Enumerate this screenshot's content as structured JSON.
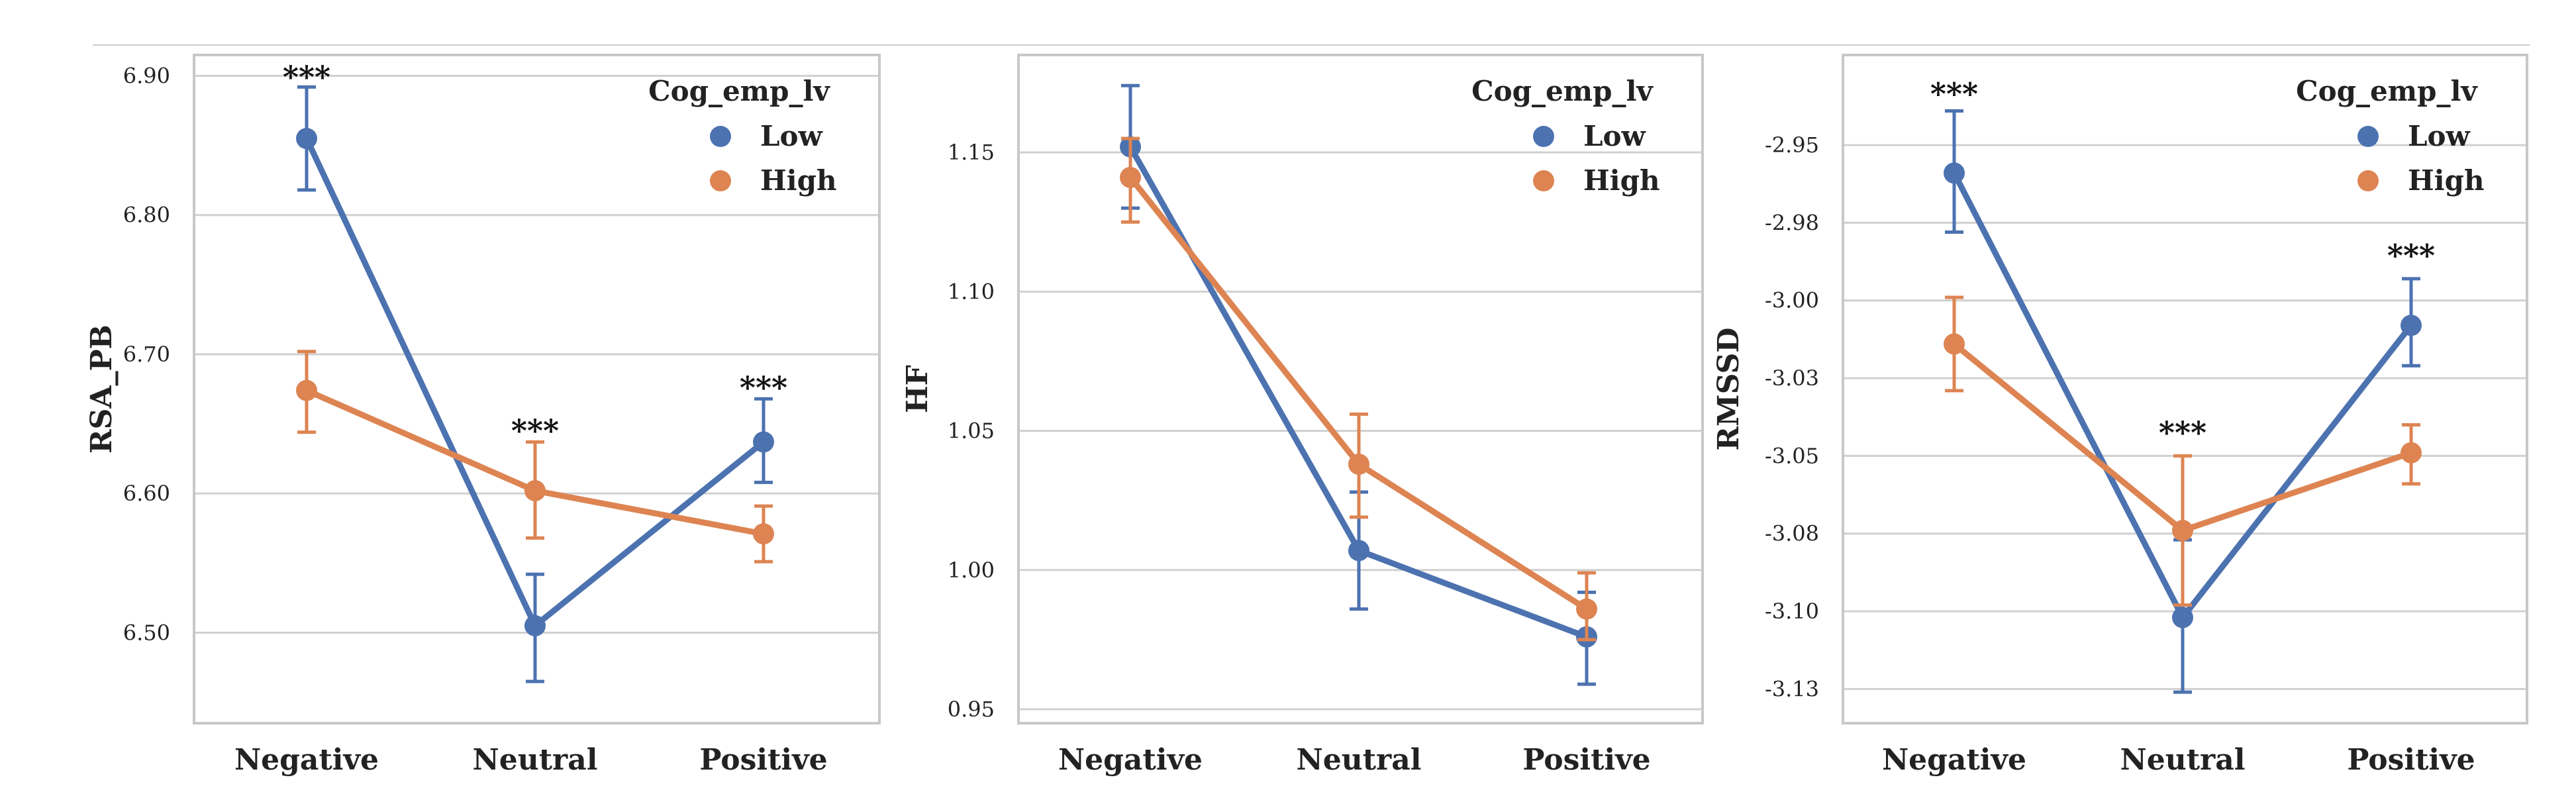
{
  "colors": {
    "low": "#4C72B0",
    "high": "#DD8452",
    "grid": "#d0d0d0",
    "frame": "#c8c8c8",
    "text": "#222222",
    "divider": "#cccccc"
  },
  "chart_data": [
    {
      "type": "line",
      "title": "",
      "xlabel": "",
      "ylabel": "RSA_PB",
      "categories": [
        "Negative",
        "Neutral",
        "Positive"
      ],
      "ylim": [
        6.435,
        6.915
      ],
      "yticks": [
        6.5,
        6.6,
        6.7,
        6.8,
        6.9
      ],
      "ytick_labels": [
        "6.50",
        "6.60",
        "6.70",
        "6.80",
        "6.90"
      ],
      "legend": {
        "title": "Cog_emp_lv",
        "position": "top-right",
        "entries": [
          "Low",
          "High"
        ]
      },
      "series": [
        {
          "name": "Low",
          "values": [
            6.855,
            6.505,
            6.637
          ],
          "ci_low": [
            6.818,
            6.465,
            6.608
          ],
          "ci_high": [
            6.892,
            6.542,
            6.668
          ]
        },
        {
          "name": "High",
          "values": [
            6.674,
            6.602,
            6.571
          ],
          "ci_low": [
            6.644,
            6.568,
            6.551
          ],
          "ci_high": [
            6.702,
            6.637,
            6.591
          ]
        }
      ],
      "annotations": [
        {
          "category": "Negative",
          "text": "***",
          "y": 6.898
        },
        {
          "category": "Neutral",
          "text": "***",
          "y": 6.644
        },
        {
          "category": "Positive",
          "text": "***",
          "y": 6.675
        }
      ]
    },
    {
      "type": "line",
      "title": "",
      "xlabel": "",
      "ylabel": "HF",
      "categories": [
        "Negative",
        "Neutral",
        "Positive"
      ],
      "ylim": [
        0.945,
        1.185
      ],
      "yticks": [
        0.95,
        1.0,
        1.05,
        1.1,
        1.15
      ],
      "ytick_labels": [
        "0.95",
        "1.00",
        "1.05",
        "1.10",
        "1.15"
      ],
      "legend": {
        "title": "Cog_emp_lv",
        "position": "top-right",
        "entries": [
          "Low",
          "High"
        ]
      },
      "series": [
        {
          "name": "Low",
          "values": [
            1.152,
            1.007,
            0.976
          ],
          "ci_low": [
            1.13,
            0.986,
            0.959
          ],
          "ci_high": [
            1.174,
            1.028,
            0.992
          ]
        },
        {
          "name": "High",
          "values": [
            1.141,
            1.038,
            0.986
          ],
          "ci_low": [
            1.125,
            1.019,
            0.975
          ],
          "ci_high": [
            1.155,
            1.056,
            0.999
          ]
        }
      ],
      "annotations": []
    },
    {
      "type": "line",
      "title": "",
      "xlabel": "",
      "ylabel": "RMSSD",
      "categories": [
        "Negative",
        "Neutral",
        "Positive"
      ],
      "ylim": [
        -3.141,
        -2.926
      ],
      "yticks": [
        -3.13,
        -3.105,
        -3.08,
        -3.055,
        -3.03,
        -3.005,
        -2.98,
        -2.955
      ],
      "ytick_labels": [
        "-3.13",
        "-3.10",
        "-3.08",
        "-3.05",
        "-3.03",
        "-3.00",
        "-2.98",
        "-2.95"
      ],
      "legend": {
        "title": "Cog_emp_lv",
        "position": "top-right",
        "entries": [
          "Low",
          "High"
        ]
      },
      "series": [
        {
          "name": "Low",
          "values": [
            -2.964,
            -3.107,
            -3.013
          ],
          "ci_low": [
            -2.983,
            -3.131,
            -3.026
          ],
          "ci_high": [
            -2.944,
            -3.082,
            -2.998
          ]
        },
        {
          "name": "High",
          "values": [
            -3.019,
            -3.079,
            -3.054
          ],
          "ci_low": [
            -3.034,
            -3.103,
            -3.064
          ],
          "ci_high": [
            -3.004,
            -3.055,
            -3.045
          ]
        }
      ],
      "annotations": [
        {
          "category": "Negative",
          "text": "***",
          "y": -2.939
        },
        {
          "category": "Neutral",
          "text": "***",
          "y": -3.048
        },
        {
          "category": "Positive",
          "text": "***",
          "y": -2.991
        }
      ]
    }
  ]
}
